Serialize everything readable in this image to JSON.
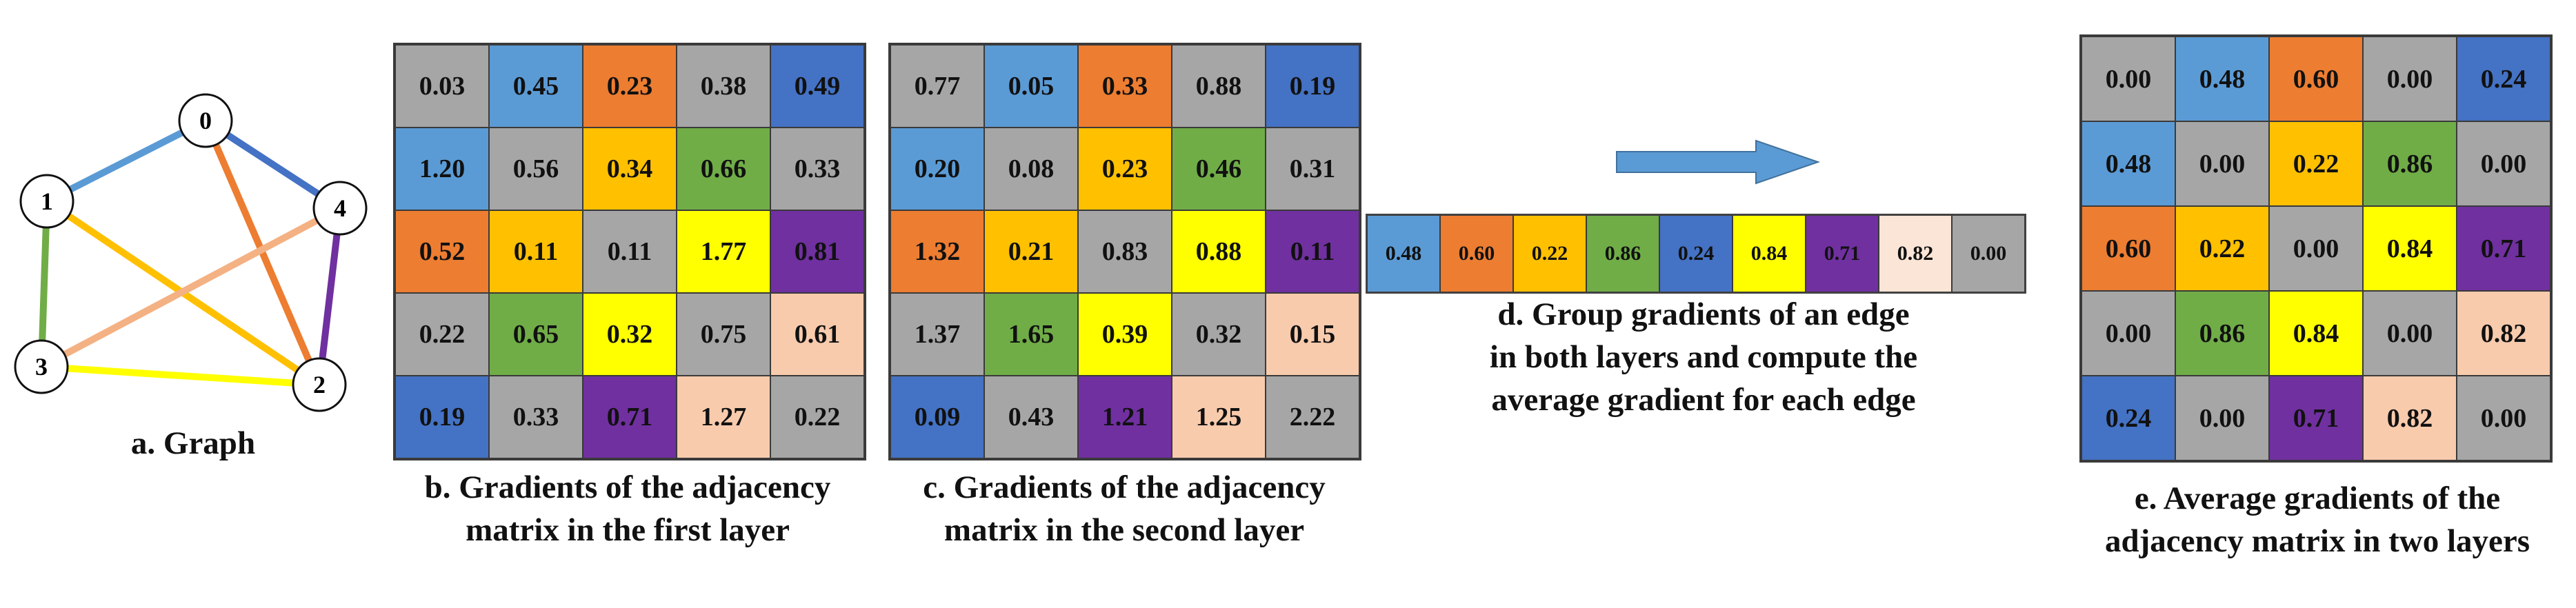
{
  "colors": {
    "gray": "#a6a6a6",
    "light_blue": "#5b9bd5",
    "orange": "#ed7d31",
    "gold": "#ffc000",
    "green": "#70ad47",
    "dark_blue": "#4472c4",
    "yellow": "#ffff00",
    "purple": "#7030a0",
    "peach": "#f8cbad",
    "pale_peach": "#fbe5d6"
  },
  "graph": {
    "caption": "a. Graph",
    "nodes": [
      {
        "id": "n0",
        "label": "0"
      },
      {
        "id": "n1",
        "label": "1"
      },
      {
        "id": "n2",
        "label": "2"
      },
      {
        "id": "n3",
        "label": "3"
      },
      {
        "id": "n4",
        "label": "4"
      }
    ],
    "edges": [
      {
        "from": "0",
        "to": "1",
        "color": "#5b9bd5"
      },
      {
        "from": "0",
        "to": "4",
        "color": "#4472c4"
      },
      {
        "from": "0",
        "to": "2",
        "color": "#ed7d31"
      },
      {
        "from": "1",
        "to": "2",
        "color": "#ffc000"
      },
      {
        "from": "1",
        "to": "3",
        "color": "#70ad47"
      },
      {
        "from": "3",
        "to": "4",
        "color": "#f4b183"
      },
      {
        "from": "3",
        "to": "2",
        "color": "#ffff00"
      },
      {
        "from": "4",
        "to": "2",
        "color": "#7030a0"
      }
    ]
  },
  "matrix_b": {
    "caption_line1": "b. Gradients of the adjacency",
    "caption_line2": "matrix in the first layer",
    "rows": [
      [
        {
          "v": "0.03",
          "c": "gray"
        },
        {
          "v": "0.45",
          "c": "light_blue"
        },
        {
          "v": "0.23",
          "c": "orange"
        },
        {
          "v": "0.38",
          "c": "gray"
        },
        {
          "v": "0.49",
          "c": "dark_blue"
        }
      ],
      [
        {
          "v": "1.20",
          "c": "light_blue"
        },
        {
          "v": "0.56",
          "c": "gray"
        },
        {
          "v": "0.34",
          "c": "gold"
        },
        {
          "v": "0.66",
          "c": "green"
        },
        {
          "v": "0.33",
          "c": "gray"
        }
      ],
      [
        {
          "v": "0.52",
          "c": "orange"
        },
        {
          "v": "0.11",
          "c": "gold"
        },
        {
          "v": "0.11",
          "c": "gray"
        },
        {
          "v": "1.77",
          "c": "yellow"
        },
        {
          "v": "0.81",
          "c": "purple"
        }
      ],
      [
        {
          "v": "0.22",
          "c": "gray"
        },
        {
          "v": "0.65",
          "c": "green"
        },
        {
          "v": "0.32",
          "c": "yellow"
        },
        {
          "v": "0.75",
          "c": "gray"
        },
        {
          "v": "0.61",
          "c": "peach"
        }
      ],
      [
        {
          "v": "0.19",
          "c": "dark_blue"
        },
        {
          "v": "0.33",
          "c": "gray"
        },
        {
          "v": "0.71",
          "c": "purple"
        },
        {
          "v": "1.27",
          "c": "peach"
        },
        {
          "v": "0.22",
          "c": "gray"
        }
      ]
    ]
  },
  "matrix_c": {
    "caption_line1": "c. Gradients of the adjacency",
    "caption_line2": "matrix in the second layer",
    "rows": [
      [
        {
          "v": "0.77",
          "c": "gray"
        },
        {
          "v": "0.05",
          "c": "light_blue"
        },
        {
          "v": "0.33",
          "c": "orange"
        },
        {
          "v": "0.88",
          "c": "gray"
        },
        {
          "v": "0.19",
          "c": "dark_blue"
        }
      ],
      [
        {
          "v": "0.20",
          "c": "light_blue"
        },
        {
          "v": "0.08",
          "c": "gray"
        },
        {
          "v": "0.23",
          "c": "gold"
        },
        {
          "v": "0.46",
          "c": "green"
        },
        {
          "v": "0.31",
          "c": "gray"
        }
      ],
      [
        {
          "v": "1.32",
          "c": "orange"
        },
        {
          "v": "0.21",
          "c": "gold"
        },
        {
          "v": "0.83",
          "c": "gray"
        },
        {
          "v": "0.88",
          "c": "yellow"
        },
        {
          "v": "0.11",
          "c": "purple"
        }
      ],
      [
        {
          "v": "1.37",
          "c": "gray"
        },
        {
          "v": "1.65",
          "c": "green"
        },
        {
          "v": "0.39",
          "c": "yellow"
        },
        {
          "v": "0.32",
          "c": "gray"
        },
        {
          "v": "0.15",
          "c": "peach"
        }
      ],
      [
        {
          "v": "0.09",
          "c": "dark_blue"
        },
        {
          "v": "0.43",
          "c": "gray"
        },
        {
          "v": "1.21",
          "c": "purple"
        },
        {
          "v": "1.25",
          "c": "peach"
        },
        {
          "v": "2.22",
          "c": "gray"
        }
      ]
    ]
  },
  "strip_d": {
    "caption_line1": "d. Group gradients of an edge",
    "caption_line2": "in both layers and compute the",
    "caption_line3": "average gradient for each edge",
    "cells": [
      {
        "v": "0.48",
        "c": "light_blue"
      },
      {
        "v": "0.60",
        "c": "orange"
      },
      {
        "v": "0.22",
        "c": "gold"
      },
      {
        "v": "0.86",
        "c": "green"
      },
      {
        "v": "0.24",
        "c": "dark_blue"
      },
      {
        "v": "0.84",
        "c": "yellow"
      },
      {
        "v": "0.71",
        "c": "purple"
      },
      {
        "v": "0.82",
        "c": "pale_peach"
      },
      {
        "v": "0.00",
        "c": "gray"
      }
    ]
  },
  "matrix_e": {
    "caption_line1": "e. Average gradients of the",
    "caption_line2": "adjacency matrix in two layers",
    "rows": [
      [
        {
          "v": "0.00",
          "c": "gray"
        },
        {
          "v": "0.48",
          "c": "light_blue"
        },
        {
          "v": "0.60",
          "c": "orange"
        },
        {
          "v": "0.00",
          "c": "gray"
        },
        {
          "v": "0.24",
          "c": "dark_blue"
        }
      ],
      [
        {
          "v": "0.48",
          "c": "light_blue"
        },
        {
          "v": "0.00",
          "c": "gray"
        },
        {
          "v": "0.22",
          "c": "gold"
        },
        {
          "v": "0.86",
          "c": "green"
        },
        {
          "v": "0.00",
          "c": "gray"
        }
      ],
      [
        {
          "v": "0.60",
          "c": "orange"
        },
        {
          "v": "0.22",
          "c": "gold"
        },
        {
          "v": "0.00",
          "c": "gray"
        },
        {
          "v": "0.84",
          "c": "yellow"
        },
        {
          "v": "0.71",
          "c": "purple"
        }
      ],
      [
        {
          "v": "0.00",
          "c": "gray"
        },
        {
          "v": "0.86",
          "c": "green"
        },
        {
          "v": "0.84",
          "c": "yellow"
        },
        {
          "v": "0.00",
          "c": "gray"
        },
        {
          "v": "0.82",
          "c": "peach"
        }
      ],
      [
        {
          "v": "0.24",
          "c": "dark_blue"
        },
        {
          "v": "0.00",
          "c": "gray"
        },
        {
          "v": "0.71",
          "c": "purple"
        },
        {
          "v": "0.82",
          "c": "peach"
        },
        {
          "v": "0.00",
          "c": "gray"
        }
      ]
    ]
  }
}
